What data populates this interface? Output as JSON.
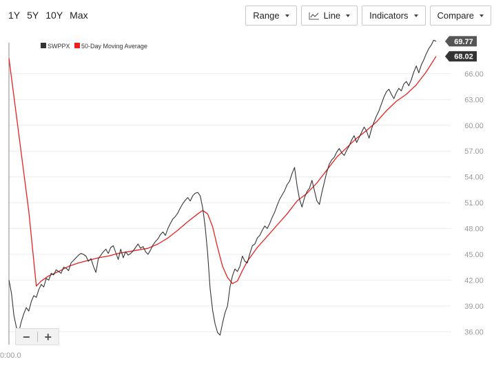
{
  "range_tabs": [
    "1Y",
    "5Y",
    "10Y",
    "Max"
  ],
  "toolbar": {
    "range_label": "Range",
    "line_label": "Line",
    "indicators_label": "Indicators",
    "compare_label": "Compare"
  },
  "zoom": {
    "minus": "−",
    "plus": "+"
  },
  "x_axis_first_label": "0:00.0",
  "colors": {
    "price": "#333333",
    "ma": "#e8201f",
    "badge_price": "#555555",
    "badge_ma": "#333333"
  },
  "chart_data": {
    "type": "line",
    "ylim": [
      34.5,
      69.6
    ],
    "y_ticks": [
      "66.00",
      "63.00",
      "60.00",
      "57.00",
      "54.00",
      "51.00",
      "48.00",
      "45.00",
      "42.00",
      "39.00",
      "36.00"
    ],
    "grid": true,
    "legend_position": "top-left",
    "series": [
      {
        "name": "SWPPX",
        "last_value": "69.77",
        "points": [
          [
            0,
            42.0
          ],
          [
            1,
            40.5
          ],
          [
            2,
            37.9
          ],
          [
            3,
            36.5
          ],
          [
            4,
            36.0
          ],
          [
            5,
            37.2
          ],
          [
            6,
            38.1
          ],
          [
            7,
            38.8
          ],
          [
            8,
            38.4
          ],
          [
            9,
            39.5
          ],
          [
            10,
            40.2
          ],
          [
            11,
            40.0
          ],
          [
            12,
            40.9
          ],
          [
            13,
            41.5
          ],
          [
            14,
            41.2
          ],
          [
            15,
            42.2
          ],
          [
            16,
            42.0
          ],
          [
            17,
            42.8
          ],
          [
            18,
            42.6
          ],
          [
            19,
            43.2
          ],
          [
            20,
            43.0
          ],
          [
            21,
            42.8
          ],
          [
            22,
            43.5
          ],
          [
            23,
            43.4
          ],
          [
            24,
            43.1
          ],
          [
            25,
            44.0
          ],
          [
            26,
            44.3
          ],
          [
            27,
            44.6
          ],
          [
            28,
            44.9
          ],
          [
            29,
            45.1
          ],
          [
            30,
            45.0
          ],
          [
            31,
            44.8
          ],
          [
            32,
            44.2
          ],
          [
            33,
            44.5
          ],
          [
            34,
            43.6
          ],
          [
            35,
            42.9
          ],
          [
            36,
            44.5
          ],
          [
            37,
            44.9
          ],
          [
            38,
            45.3
          ],
          [
            39,
            45.6
          ],
          [
            40,
            45.1
          ],
          [
            41,
            45.8
          ],
          [
            42,
            46.0
          ],
          [
            43,
            45.2
          ],
          [
            44,
            44.4
          ],
          [
            45,
            45.6
          ],
          [
            46,
            44.6
          ],
          [
            47,
            45.3
          ],
          [
            48,
            44.9
          ],
          [
            49,
            45.1
          ],
          [
            50,
            45.4
          ],
          [
            51,
            45.8
          ],
          [
            52,
            46.2
          ],
          [
            53,
            45.7
          ],
          [
            54,
            45.9
          ],
          [
            55,
            45.3
          ],
          [
            56,
            45.0
          ],
          [
            57,
            45.5
          ],
          [
            58,
            46.1
          ],
          [
            59,
            46.5
          ],
          [
            60,
            46.8
          ],
          [
            61,
            47.3
          ],
          [
            62,
            47.6
          ],
          [
            63,
            47.2
          ],
          [
            64,
            48.0
          ],
          [
            65,
            48.6
          ],
          [
            66,
            49.1
          ],
          [
            67,
            49.4
          ],
          [
            68,
            49.8
          ],
          [
            69,
            50.4
          ],
          [
            70,
            50.9
          ],
          [
            71,
            51.3
          ],
          [
            72,
            51.6
          ],
          [
            73,
            51.2
          ],
          [
            74,
            51.8
          ],
          [
            75,
            52.1
          ],
          [
            76,
            52.2
          ],
          [
            77,
            51.8
          ],
          [
            78,
            50.4
          ],
          [
            79,
            48.2
          ],
          [
            80,
            45.1
          ],
          [
            81,
            41.0
          ],
          [
            82,
            38.5
          ],
          [
            83,
            36.9
          ],
          [
            84,
            35.9
          ],
          [
            85,
            35.6
          ],
          [
            86,
            37.0
          ],
          [
            87,
            38.2
          ],
          [
            88,
            39.0
          ],
          [
            89,
            41.2
          ],
          [
            90,
            42.5
          ],
          [
            91,
            43.3
          ],
          [
            92,
            43.0
          ],
          [
            93,
            43.6
          ],
          [
            94,
            44.8
          ],
          [
            95,
            44.2
          ],
          [
            96,
            44.0
          ],
          [
            97,
            45.1
          ],
          [
            98,
            46.0
          ],
          [
            99,
            46.2
          ],
          [
            100,
            46.9
          ],
          [
            101,
            47.2
          ],
          [
            102,
            47.8
          ],
          [
            103,
            48.3
          ],
          [
            104,
            48.0
          ],
          [
            105,
            48.6
          ],
          [
            106,
            49.3
          ],
          [
            107,
            49.9
          ],
          [
            108,
            50.7
          ],
          [
            109,
            51.4
          ],
          [
            110,
            51.9
          ],
          [
            111,
            52.4
          ],
          [
            112,
            53.1
          ],
          [
            113,
            53.5
          ],
          [
            114,
            54.4
          ],
          [
            115,
            55.1
          ],
          [
            116,
            53.0
          ],
          [
            117,
            51.4
          ],
          [
            118,
            50.5
          ],
          [
            119,
            51.6
          ],
          [
            120,
            52.3
          ],
          [
            121,
            52.7
          ],
          [
            122,
            53.6
          ],
          [
            123,
            52.4
          ],
          [
            124,
            51.2
          ],
          [
            125,
            50.8
          ],
          [
            126,
            52.2
          ],
          [
            127,
            53.4
          ],
          [
            128,
            54.6
          ],
          [
            129,
            55.5
          ],
          [
            130,
            56.0
          ],
          [
            131,
            56.3
          ],
          [
            132,
            56.9
          ],
          [
            133,
            57.3
          ],
          [
            134,
            56.8
          ],
          [
            135,
            56.5
          ],
          [
            136,
            57.1
          ],
          [
            137,
            57.6
          ],
          [
            138,
            58.3
          ],
          [
            139,
            58.8
          ],
          [
            140,
            58.0
          ],
          [
            141,
            58.6
          ],
          [
            142,
            59.2
          ],
          [
            143,
            59.8
          ],
          [
            144,
            59.3
          ],
          [
            145,
            58.5
          ],
          [
            146,
            59.6
          ],
          [
            147,
            60.4
          ],
          [
            148,
            61.1
          ],
          [
            149,
            61.7
          ],
          [
            150,
            62.5
          ],
          [
            151,
            63.3
          ],
          [
            152,
            63.9
          ],
          [
            153,
            64.2
          ],
          [
            154,
            63.6
          ],
          [
            155,
            63.1
          ],
          [
            156,
            63.8
          ],
          [
            157,
            64.3
          ],
          [
            158,
            64.0
          ],
          [
            159,
            64.8
          ],
          [
            160,
            65.1
          ],
          [
            161,
            64.6
          ],
          [
            162,
            65.3
          ],
          [
            163,
            66.2
          ],
          [
            164,
            66.9
          ],
          [
            165,
            66.1
          ],
          [
            166,
            67.0
          ],
          [
            167,
            67.6
          ],
          [
            168,
            68.3
          ],
          [
            169,
            68.9
          ],
          [
            170,
            69.3
          ],
          [
            171,
            69.9
          ],
          [
            172,
            69.77
          ]
        ]
      },
      {
        "name": "50-Day Moving Average",
        "last_value": "68.02",
        "points": [
          [
            0,
            67.8
          ],
          [
            8,
            50.0
          ],
          [
            11,
            41.3
          ],
          [
            13,
            41.9
          ],
          [
            16,
            42.5
          ],
          [
            20,
            43.0
          ],
          [
            24,
            43.6
          ],
          [
            28,
            44.0
          ],
          [
            32,
            44.3
          ],
          [
            36,
            44.6
          ],
          [
            40,
            44.8
          ],
          [
            44,
            45.1
          ],
          [
            48,
            45.3
          ],
          [
            52,
            45.5
          ],
          [
            56,
            45.7
          ],
          [
            60,
            46.2
          ],
          [
            64,
            46.9
          ],
          [
            68,
            47.8
          ],
          [
            72,
            48.8
          ],
          [
            76,
            49.7
          ],
          [
            78,
            50.1
          ],
          [
            80,
            49.7
          ],
          [
            82,
            48.2
          ],
          [
            84,
            45.8
          ],
          [
            86,
            43.6
          ],
          [
            88,
            42.3
          ],
          [
            90,
            41.6
          ],
          [
            92,
            41.9
          ],
          [
            94,
            43.1
          ],
          [
            96,
            44.2
          ],
          [
            100,
            45.8
          ],
          [
            104,
            47.1
          ],
          [
            108,
            48.4
          ],
          [
            112,
            49.7
          ],
          [
            116,
            51.2
          ],
          [
            120,
            52.1
          ],
          [
            124,
            53.3
          ],
          [
            128,
            54.8
          ],
          [
            132,
            56.3
          ],
          [
            136,
            57.4
          ],
          [
            140,
            58.5
          ],
          [
            144,
            59.4
          ],
          [
            148,
            60.4
          ],
          [
            152,
            61.7
          ],
          [
            156,
            62.8
          ],
          [
            160,
            63.6
          ],
          [
            164,
            64.7
          ],
          [
            168,
            66.2
          ],
          [
            172,
            68.02
          ]
        ]
      }
    ]
  }
}
